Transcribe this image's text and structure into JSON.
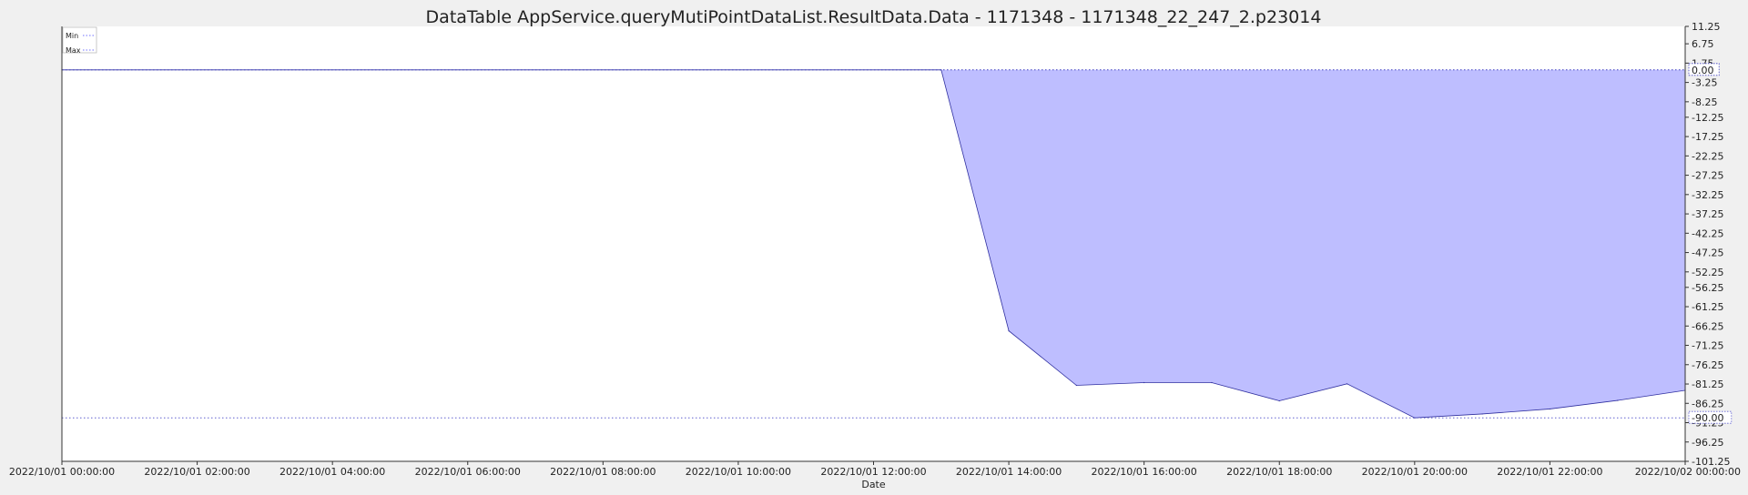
{
  "chart_data": {
    "type": "area",
    "title": "DataTable AppService.queryMutiPointDataList.ResultData.Data - 1171348 - 1171348_22_247_2.p23014",
    "xlabel": "Date",
    "ylabel": "",
    "x_range": [
      "2022/10/01 00:00:00",
      "2022/10/02 00:00:00"
    ],
    "x_tick_labels": [
      "2022/10/01 00:00:00",
      "2022/10/01 02:00:00",
      "2022/10/01 04:00:00",
      "2022/10/01 06:00:00",
      "2022/10/01 08:00:00",
      "2022/10/01 10:00:00",
      "2022/10/01 12:00:00",
      "2022/10/01 14:00:00",
      "2022/10/01 16:00:00",
      "2022/10/01 18:00:00",
      "2022/10/01 20:00:00",
      "2022/10/01 22:00:00",
      "2022/10/02 00:00:00"
    ],
    "ylim": [
      -101.25,
      11.25
    ],
    "y_tick_labels": [
      "11.25",
      "6.75",
      "1.75",
      "-3.25",
      "-8.25",
      "-12.25",
      "-17.25",
      "-22.25",
      "-27.25",
      "-32.25",
      "-37.25",
      "-42.25",
      "-47.25",
      "-52.25",
      "-56.25",
      "-61.25",
      "-66.25",
      "-71.25",
      "-76.25",
      "-81.25",
      "-86.25",
      "-91.25",
      "-96.25",
      "-101.25"
    ],
    "y_tick_values": [
      11.25,
      6.75,
      1.75,
      -3.25,
      -8.25,
      -12.25,
      -17.25,
      -22.25,
      -27.25,
      -32.25,
      -37.25,
      -42.25,
      -47.25,
      -52.25,
      -56.25,
      -61.25,
      -66.25,
      -71.25,
      -76.25,
      -81.25,
      -86.25,
      -91.25,
      -96.25,
      -101.25
    ],
    "legend": {
      "placement": "top-left",
      "entries": [
        {
          "name": "Min",
          "color": "#7070ff"
        },
        {
          "name": "Max",
          "color": "#7070ff"
        }
      ]
    },
    "reference_lines": [
      {
        "label": "0.00",
        "value": 0,
        "color": "#4040c0"
      },
      {
        "label": "-90.00",
        "value": -90,
        "color": "#6060d0"
      }
    ],
    "series": [
      {
        "color": "#bebeff",
        "edge_color": "#3030a0",
        "x": [
          "2022/10/01 00:00:00",
          "2022/10/01 13:00:00",
          "2022/10/01 14:00:00",
          "2022/10/01 15:00:00",
          "2022/10/01 16:00:00",
          "2022/10/01 17:00:00",
          "2022/10/01 18:00:00",
          "2022/10/01 19:00:00",
          "2022/10/01 20:00:00",
          "2022/10/01 21:00:00",
          "2022/10/01 22:00:00",
          "2022/10/01 23:00:00",
          "2022/10/02 00:00:00"
        ],
        "values": [
          0,
          0,
          -67.5,
          -81.6,
          -80.9,
          -80.9,
          -85.6,
          -81.2,
          -90.0,
          -89.0,
          -87.7,
          -85.5,
          -82.9
        ]
      }
    ],
    "grid": false,
    "colors": {
      "background": "#f0f0f0",
      "plot_background": "#ffffff",
      "text": "#222222"
    }
  }
}
